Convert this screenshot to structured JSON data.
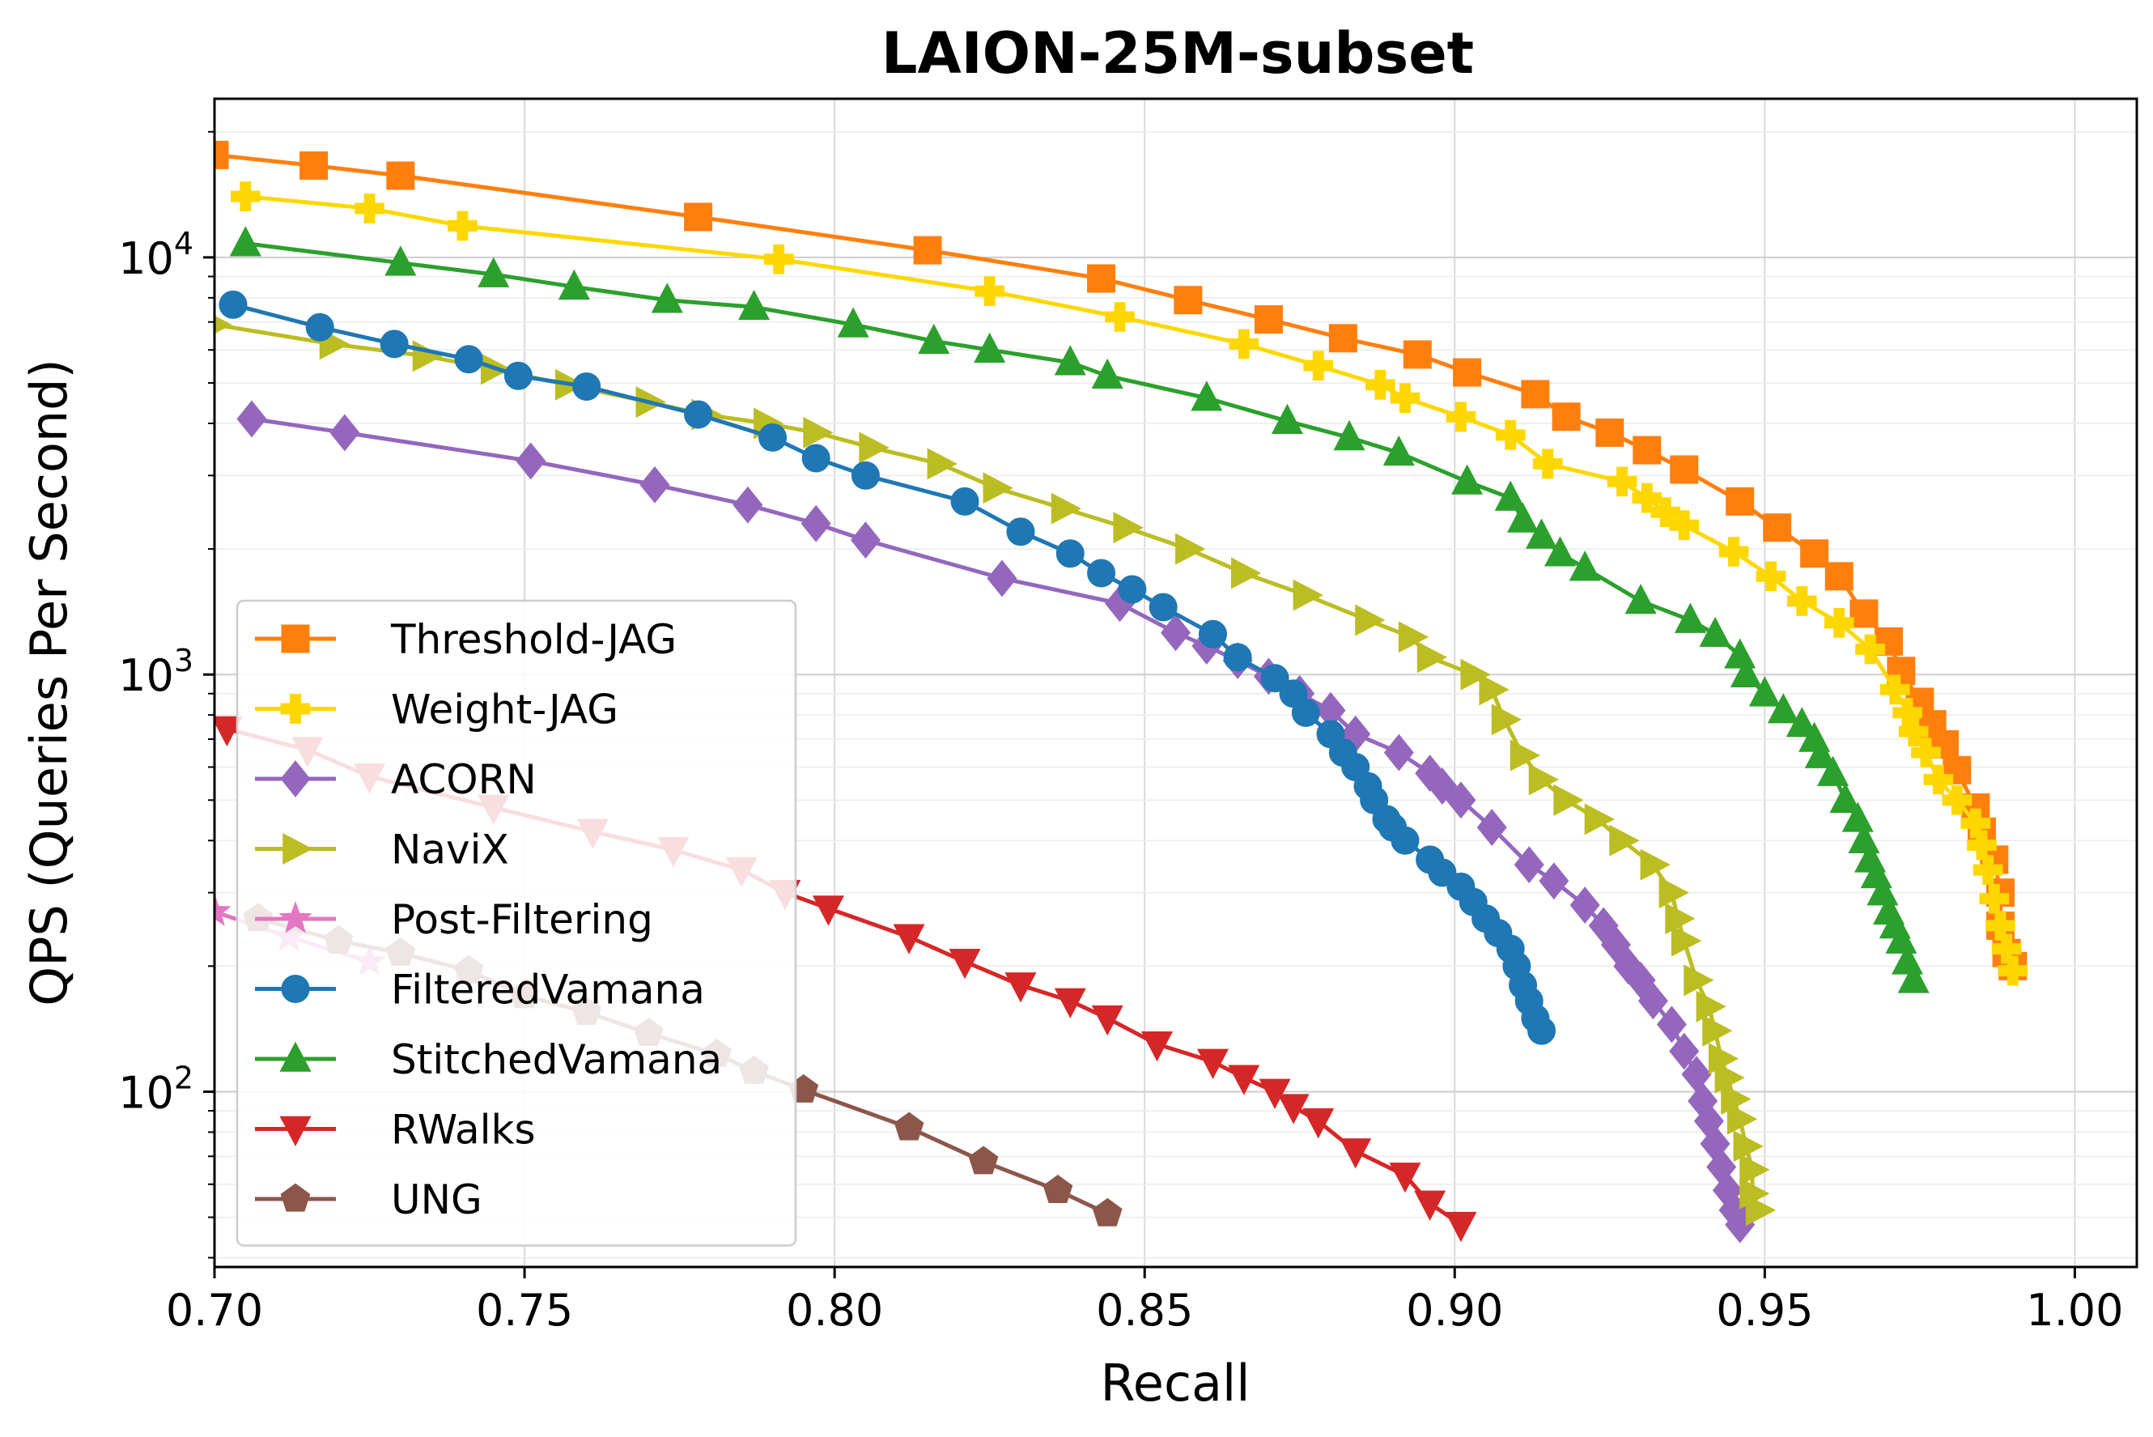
{
  "chart_data": {
    "type": "line",
    "title": "LAION-25M-subset",
    "xlabel": "Recall",
    "ylabel": "QPS (Queries Per Second)",
    "xlim": [
      0.7,
      1.01
    ],
    "ylim": [
      38,
      24000
    ],
    "yscale": "log",
    "grid": true,
    "legend_position": "lower-left",
    "x_ticks": [
      {
        "value": 0.7,
        "label": "0.70"
      },
      {
        "value": 0.75,
        "label": "0.75"
      },
      {
        "value": 0.8,
        "label": "0.80"
      },
      {
        "value": 0.85,
        "label": "0.85"
      },
      {
        "value": 0.9,
        "label": "0.90"
      },
      {
        "value": 0.95,
        "label": "0.95"
      },
      {
        "value": 1.0,
        "label": "1.00"
      }
    ],
    "y_ticks": [
      {
        "value": 100,
        "base": "10",
        "exp": "2"
      },
      {
        "value": 1000,
        "base": "10",
        "exp": "3"
      },
      {
        "value": 10000,
        "base": "10",
        "exp": "4"
      }
    ],
    "series": [
      {
        "name": "Threshold-JAG",
        "color": "#ff7f0e",
        "marker": "square",
        "points": [
          [
            0.7,
            17600
          ],
          [
            0.716,
            16600
          ],
          [
            0.73,
            15700
          ],
          [
            0.778,
            12500
          ],
          [
            0.815,
            10400
          ],
          [
            0.843,
            8900
          ],
          [
            0.857,
            7900
          ],
          [
            0.87,
            7100
          ],
          [
            0.882,
            6400
          ],
          [
            0.894,
            5850
          ],
          [
            0.902,
            5300
          ],
          [
            0.913,
            4700
          ],
          [
            0.918,
            4150
          ],
          [
            0.925,
            3800
          ],
          [
            0.931,
            3450
          ],
          [
            0.937,
            3100
          ],
          [
            0.946,
            2600
          ],
          [
            0.952,
            2250
          ],
          [
            0.958,
            1950
          ],
          [
            0.962,
            1720
          ],
          [
            0.966,
            1400
          ],
          [
            0.97,
            1200
          ],
          [
            0.972,
            1020
          ],
          [
            0.975,
            860
          ],
          [
            0.977,
            760
          ],
          [
            0.979,
            680
          ],
          [
            0.981,
            590
          ],
          [
            0.984,
            480
          ],
          [
            0.985,
            420
          ],
          [
            0.987,
            360
          ],
          [
            0.988,
            300
          ],
          [
            0.988,
            250
          ],
          [
            0.989,
            215
          ],
          [
            0.99,
            200
          ]
        ]
      },
      {
        "name": "Weight-JAG",
        "color": "#ffd700",
        "marker": "plus",
        "points": [
          [
            0.705,
            14000
          ],
          [
            0.725,
            13100
          ],
          [
            0.74,
            11900
          ],
          [
            0.791,
            9900
          ],
          [
            0.825,
            8300
          ],
          [
            0.846,
            7200
          ],
          [
            0.866,
            6200
          ],
          [
            0.878,
            5500
          ],
          [
            0.888,
            4950
          ],
          [
            0.892,
            4600
          ],
          [
            0.901,
            4150
          ],
          [
            0.909,
            3750
          ],
          [
            0.915,
            3200
          ],
          [
            0.927,
            2900
          ],
          [
            0.931,
            2650
          ],
          [
            0.934,
            2450
          ],
          [
            0.937,
            2280
          ],
          [
            0.945,
            1970
          ],
          [
            0.951,
            1720
          ],
          [
            0.956,
            1500
          ],
          [
            0.962,
            1330
          ],
          [
            0.967,
            1150
          ],
          [
            0.971,
            920
          ],
          [
            0.973,
            810
          ],
          [
            0.974,
            730
          ],
          [
            0.976,
            650
          ],
          [
            0.978,
            560
          ],
          [
            0.981,
            500
          ],
          [
            0.984,
            440
          ],
          [
            0.985,
            390
          ],
          [
            0.986,
            340
          ],
          [
            0.987,
            290
          ],
          [
            0.988,
            250
          ],
          [
            0.989,
            220
          ],
          [
            0.99,
            195
          ]
        ]
      },
      {
        "name": "ACORN",
        "color": "#9467bd",
        "marker": "diamond",
        "points": [
          [
            0.706,
            4100
          ],
          [
            0.721,
            3800
          ],
          [
            0.751,
            3250
          ],
          [
            0.771,
            2850
          ],
          [
            0.786,
            2550
          ],
          [
            0.797,
            2300
          ],
          [
            0.805,
            2100
          ],
          [
            0.827,
            1700
          ],
          [
            0.846,
            1480
          ],
          [
            0.855,
            1260
          ],
          [
            0.86,
            1170
          ],
          [
            0.865,
            1080
          ],
          [
            0.87,
            990
          ],
          [
            0.875,
            900
          ],
          [
            0.88,
            820
          ],
          [
            0.884,
            720
          ],
          [
            0.891,
            650
          ],
          [
            0.896,
            580
          ],
          [
            0.898,
            540
          ],
          [
            0.901,
            500
          ],
          [
            0.906,
            430
          ],
          [
            0.912,
            350
          ],
          [
            0.916,
            320
          ],
          [
            0.921,
            280
          ],
          [
            0.924,
            250
          ],
          [
            0.926,
            225
          ],
          [
            0.928,
            200
          ],
          [
            0.93,
            185
          ],
          [
            0.932,
            165
          ],
          [
            0.935,
            145
          ],
          [
            0.937,
            125
          ],
          [
            0.939,
            110
          ],
          [
            0.94,
            95
          ],
          [
            0.941,
            85
          ],
          [
            0.942,
            75
          ],
          [
            0.943,
            66
          ],
          [
            0.944,
            58
          ],
          [
            0.945,
            52
          ],
          [
            0.946,
            48
          ]
        ]
      },
      {
        "name": "NaviX",
        "color": "#bcbd22",
        "marker": "triangle-right",
        "points": [
          [
            0.7,
            6900
          ],
          [
            0.719,
            6200
          ],
          [
            0.734,
            5800
          ],
          [
            0.745,
            5400
          ],
          [
            0.757,
            4950
          ],
          [
            0.77,
            4500
          ],
          [
            0.779,
            4200
          ],
          [
            0.789,
            4000
          ],
          [
            0.797,
            3800
          ],
          [
            0.806,
            3500
          ],
          [
            0.817,
            3200
          ],
          [
            0.826,
            2800
          ],
          [
            0.837,
            2500
          ],
          [
            0.847,
            2250
          ],
          [
            0.857,
            2000
          ],
          [
            0.866,
            1750
          ],
          [
            0.876,
            1550
          ],
          [
            0.886,
            1350
          ],
          [
            0.893,
            1230
          ],
          [
            0.896,
            1100
          ],
          [
            0.903,
            1000
          ],
          [
            0.906,
            920
          ],
          [
            0.908,
            780
          ],
          [
            0.911,
            640
          ],
          [
            0.914,
            560
          ],
          [
            0.918,
            500
          ],
          [
            0.923,
            450
          ],
          [
            0.927,
            400
          ],
          [
            0.932,
            350
          ],
          [
            0.935,
            300
          ],
          [
            0.936,
            260
          ],
          [
            0.937,
            230
          ],
          [
            0.939,
            185
          ],
          [
            0.941,
            160
          ],
          [
            0.942,
            140
          ],
          [
            0.943,
            120
          ],
          [
            0.944,
            108
          ],
          [
            0.945,
            96
          ],
          [
            0.946,
            86
          ],
          [
            0.947,
            74
          ],
          [
            0.948,
            65
          ],
          [
            0.948,
            57
          ],
          [
            0.949,
            52
          ]
        ]
      },
      {
        "name": "Post-Filtering",
        "color": "#e377c2",
        "marker": "star",
        "points": [
          [
            0.7,
            270
          ],
          [
            0.712,
            235
          ],
          [
            0.725,
            205
          ]
        ]
      },
      {
        "name": "FilteredVamana",
        "color": "#1f77b4",
        "marker": "circle",
        "points": [
          [
            0.703,
            7700
          ],
          [
            0.717,
            6800
          ],
          [
            0.729,
            6200
          ],
          [
            0.741,
            5700
          ],
          [
            0.749,
            5200
          ],
          [
            0.76,
            4900
          ],
          [
            0.778,
            4200
          ],
          [
            0.79,
            3700
          ],
          [
            0.797,
            3300
          ],
          [
            0.805,
            3000
          ],
          [
            0.821,
            2600
          ],
          [
            0.83,
            2200
          ],
          [
            0.838,
            1950
          ],
          [
            0.843,
            1750
          ],
          [
            0.848,
            1600
          ],
          [
            0.853,
            1450
          ],
          [
            0.861,
            1250
          ],
          [
            0.865,
            1100
          ],
          [
            0.871,
            980
          ],
          [
            0.874,
            900
          ],
          [
            0.876,
            810
          ],
          [
            0.88,
            720
          ],
          [
            0.882,
            650
          ],
          [
            0.884,
            600
          ],
          [
            0.886,
            540
          ],
          [
            0.887,
            500
          ],
          [
            0.889,
            450
          ],
          [
            0.89,
            430
          ],
          [
            0.892,
            400
          ],
          [
            0.896,
            360
          ],
          [
            0.898,
            335
          ],
          [
            0.901,
            310
          ],
          [
            0.903,
            285
          ],
          [
            0.905,
            260
          ],
          [
            0.907,
            240
          ],
          [
            0.909,
            220
          ],
          [
            0.91,
            200
          ],
          [
            0.911,
            180
          ],
          [
            0.912,
            165
          ],
          [
            0.913,
            150
          ],
          [
            0.914,
            140
          ]
        ]
      },
      {
        "name": "StitchedVamana",
        "color": "#2ca02c",
        "marker": "triangle-up",
        "points": [
          [
            0.705,
            10800
          ],
          [
            0.73,
            9700
          ],
          [
            0.745,
            9100
          ],
          [
            0.758,
            8500
          ],
          [
            0.773,
            7900
          ],
          [
            0.787,
            7600
          ],
          [
            0.803,
            6900
          ],
          [
            0.816,
            6300
          ],
          [
            0.825,
            6000
          ],
          [
            0.838,
            5600
          ],
          [
            0.844,
            5200
          ],
          [
            0.86,
            4600
          ],
          [
            0.873,
            4050
          ],
          [
            0.883,
            3700
          ],
          [
            0.891,
            3400
          ],
          [
            0.902,
            2900
          ],
          [
            0.909,
            2650
          ],
          [
            0.911,
            2350
          ],
          [
            0.914,
            2150
          ],
          [
            0.917,
            1950
          ],
          [
            0.921,
            1800
          ],
          [
            0.93,
            1500
          ],
          [
            0.938,
            1350
          ],
          [
            0.942,
            1250
          ],
          [
            0.946,
            1110
          ],
          [
            0.947,
            1000
          ],
          [
            0.95,
            900
          ],
          [
            0.953,
            820
          ],
          [
            0.956,
            760
          ],
          [
            0.958,
            700
          ],
          [
            0.959,
            640
          ],
          [
            0.961,
            580
          ],
          [
            0.963,
            500
          ],
          [
            0.965,
            450
          ],
          [
            0.966,
            400
          ],
          [
            0.967,
            360
          ],
          [
            0.968,
            330
          ],
          [
            0.969,
            300
          ],
          [
            0.97,
            270
          ],
          [
            0.971,
            250
          ],
          [
            0.972,
            230
          ],
          [
            0.973,
            205
          ],
          [
            0.974,
            185
          ]
        ]
      },
      {
        "name": "RWalks",
        "color": "#d62728",
        "marker": "triangle-down",
        "points": [
          [
            0.702,
            740
          ],
          [
            0.715,
            660
          ],
          [
            0.725,
            570
          ],
          [
            0.745,
            480
          ],
          [
            0.761,
            420
          ],
          [
            0.774,
            380
          ],
          [
            0.785,
            340
          ],
          [
            0.792,
            300
          ],
          [
            0.799,
            275
          ],
          [
            0.812,
            235
          ],
          [
            0.821,
            205
          ],
          [
            0.83,
            180
          ],
          [
            0.838,
            165
          ],
          [
            0.844,
            150
          ],
          [
            0.852,
            130
          ],
          [
            0.861,
            118
          ],
          [
            0.866,
            108
          ],
          [
            0.871,
            100
          ],
          [
            0.874,
            92
          ],
          [
            0.878,
            85
          ],
          [
            0.884,
            72
          ],
          [
            0.892,
            63
          ],
          [
            0.896,
            54
          ],
          [
            0.901,
            48
          ]
        ]
      },
      {
        "name": "UNG",
        "color": "#8c564b",
        "marker": "pentagon",
        "points": [
          [
            0.707,
            260
          ],
          [
            0.72,
            230
          ],
          [
            0.73,
            215
          ],
          [
            0.741,
            195
          ],
          [
            0.75,
            170
          ],
          [
            0.76,
            155
          ],
          [
            0.77,
            138
          ],
          [
            0.781,
            123
          ],
          [
            0.787,
            112
          ],
          [
            0.795,
            101
          ],
          [
            0.812,
            82
          ],
          [
            0.824,
            68
          ],
          [
            0.836,
            58
          ],
          [
            0.844,
            51
          ]
        ]
      }
    ]
  }
}
